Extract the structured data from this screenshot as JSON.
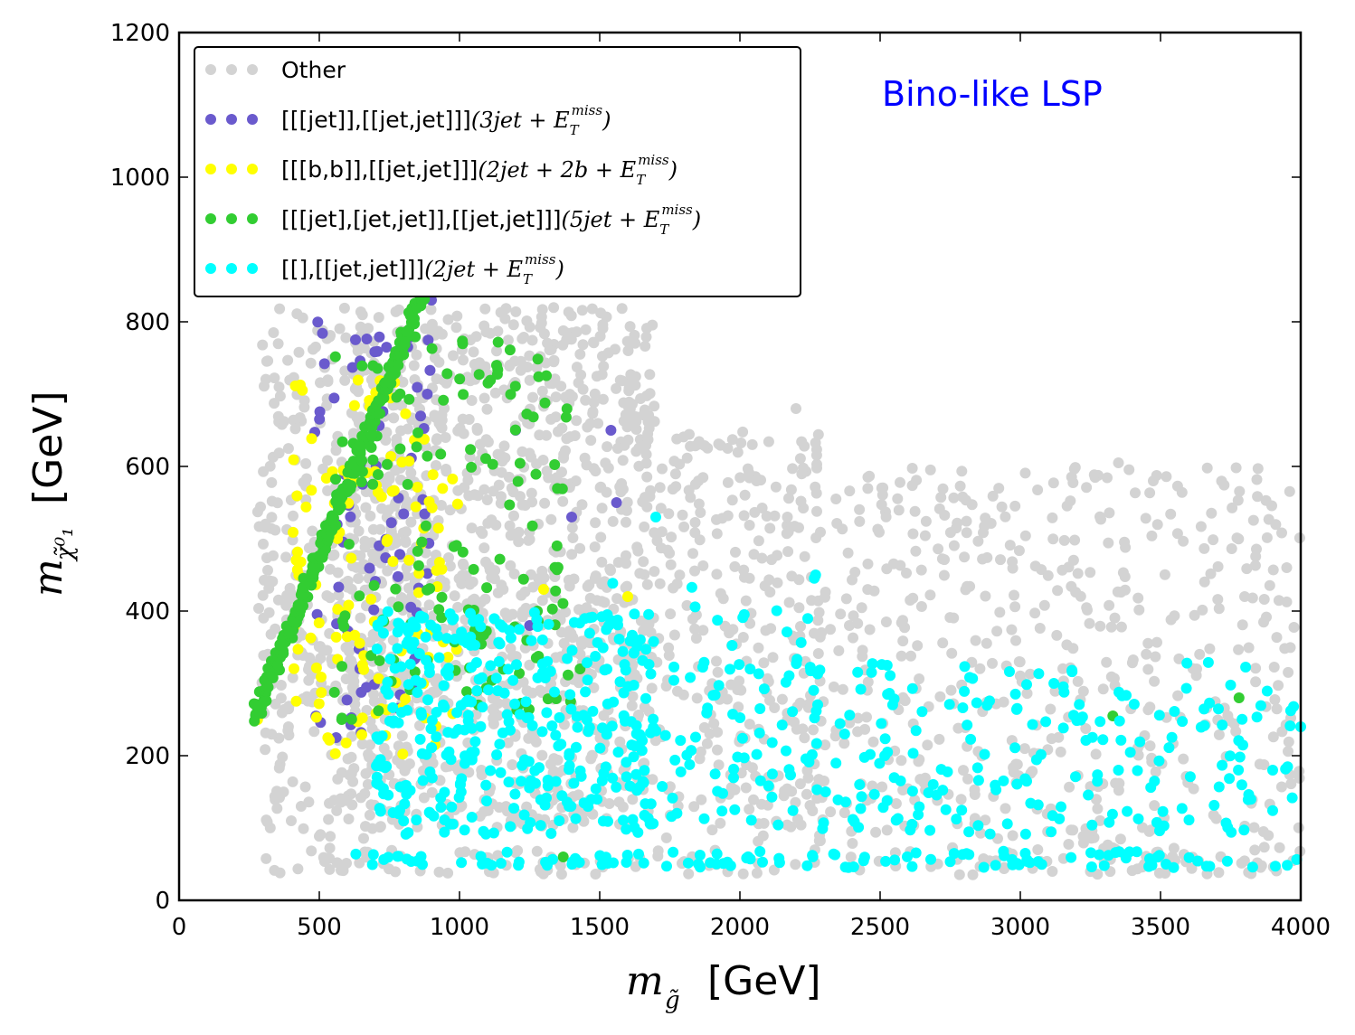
{
  "chart_data": {
    "type": "scatter",
    "title": "",
    "annotation": "Bino-like LSP",
    "annotation_color": "#0000ff",
    "xlabel_math": "m",
    "xlabel_sub": "g̃",
    "xlabel_unit": "[GeV]",
    "ylabel_math": "m",
    "ylabel_sub": "χ̃⁰₁",
    "ylabel_unit": "[GeV]",
    "xlim": [
      0,
      4000
    ],
    "ylim": [
      0,
      1200
    ],
    "xticks": [
      0,
      500,
      1000,
      1500,
      2000,
      2500,
      3000,
      3500,
      4000
    ],
    "yticks": [
      0,
      200,
      400,
      600,
      800,
      1000,
      1200
    ],
    "grid": false,
    "legend_position": "top-left",
    "series": [
      {
        "key": "other",
        "name": "Other",
        "name_math": "",
        "name_sup": "",
        "name_close": "",
        "color": "#d3d3d3",
        "regions": [
          {
            "x": [
              600,
              1700
            ],
            "y": [
              100,
              820
            ],
            "density": 0.9
          },
          {
            "x": [
              1700,
              2300
            ],
            "y": [
              80,
              650
            ],
            "density": 0.55
          },
          {
            "x": [
              2300,
              4000
            ],
            "y": [
              70,
              600
            ],
            "density": 0.35
          },
          {
            "x": [
              300,
              700
            ],
            "y": [
              40,
              500
            ],
            "density": 0.4
          },
          {
            "x": [
              500,
              4000
            ],
            "y": [
              35,
              70
            ],
            "density": 0.7
          },
          {
            "x": [
              280,
              850
            ],
            "y": [
              260,
              820
            ],
            "density": 0.5
          }
        ],
        "points": [
          [
            390,
            240
          ],
          [
            360,
            38
          ],
          [
            400,
            110
          ],
          [
            800,
            560
          ],
          [
            2200,
            680
          ],
          [
            3350,
            605
          ],
          [
            3800,
            420
          ],
          [
            3950,
            460
          ]
        ]
      },
      {
        "key": "3jet",
        "name": "[[[jet]],[[jet,jet]]]",
        "name_math": "(3jet + E",
        "name_sup": "miss",
        "name_close": ")",
        "color": "#6a5acd",
        "regions": [
          {
            "x": [
              480,
              900
            ],
            "y": [
              230,
              800
            ],
            "density": 0.2
          }
        ],
        "points": [
          [
            560,
            225
          ],
          [
            900,
            830
          ],
          [
            1200,
            650
          ],
          [
            1540,
            650
          ],
          [
            1400,
            530
          ],
          [
            1560,
            550
          ],
          [
            1250,
            380
          ]
        ]
      },
      {
        "key": "2jet2b",
        "name": "[[[b,b]],[[jet,jet]]]",
        "name_math": "(2jet + 2b + E",
        "name_sup": "miss",
        "name_close": ")",
        "color": "#ffff00",
        "regions": [
          {
            "x": [
              400,
              1000
            ],
            "y": [
              200,
              720
            ],
            "density": 0.25
          }
        ],
        "points": [
          [
            280,
            250
          ],
          [
            1600,
            420
          ],
          [
            1300,
            430
          ]
        ]
      },
      {
        "key": "5jet",
        "name": "[[[jet],[jet,jet]],[[jet,jet]]]",
        "name_math": "(5jet + E",
        "name_sup": "miss",
        "name_close": ")",
        "color": "#32cd32",
        "regions": [
          {
            "x": [
              550,
              1400
            ],
            "y": [
              250,
              780
            ],
            "density": 0.2
          }
        ],
        "points": [
          [
            1370,
            60
          ],
          [
            3330,
            255
          ],
          [
            3780,
            280
          ],
          [
            1430,
            320
          ],
          [
            580,
            250
          ]
        ]
      },
      {
        "key": "2jet",
        "name": "[[],[[jet,jet]]]",
        "name_math": "(2jet + E",
        "name_sup": "miss",
        "name_close": ")",
        "color": "#00ffff",
        "regions": [
          {
            "x": [
              700,
              1700
            ],
            "y": [
              90,
              400
            ],
            "density": 0.75
          },
          {
            "x": [
              1700,
              4000
            ],
            "y": [
              90,
              330
            ],
            "density": 0.3
          },
          {
            "x": [
              1500,
              2300
            ],
            "y": [
              300,
              450
            ],
            "density": 0.12
          },
          {
            "x": [
              620,
              4000
            ],
            "y": [
              45,
              68
            ],
            "density": 1.0
          }
        ],
        "points": [
          [
            1700,
            530
          ],
          [
            2270,
            450
          ],
          [
            3350,
            180
          ],
          [
            3900,
            180
          ],
          [
            4000,
            240
          ]
        ]
      }
    ],
    "diagonal_band": {
      "x_start": 270,
      "x_end": 860,
      "y_start": 255,
      "y_end": 830,
      "series": "5jet"
    }
  }
}
